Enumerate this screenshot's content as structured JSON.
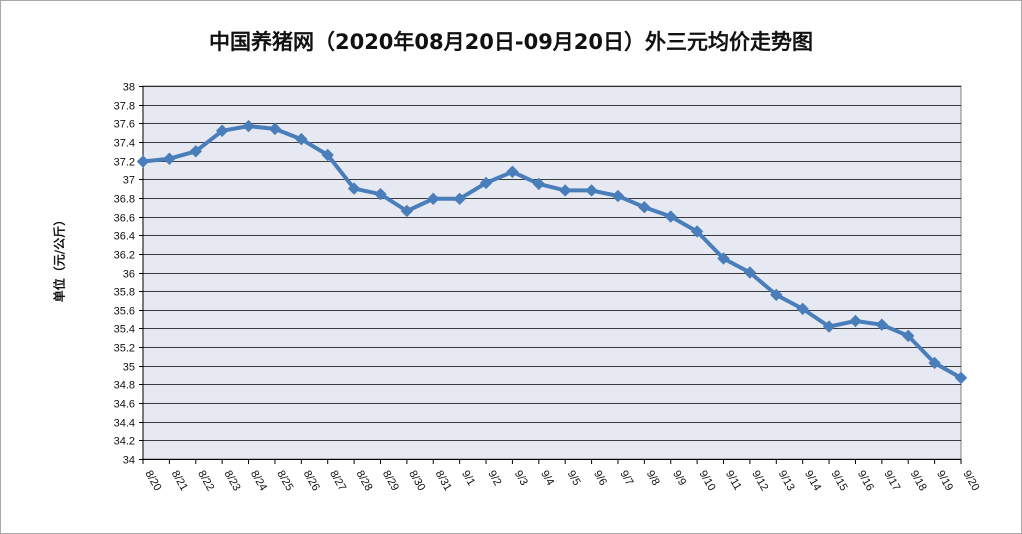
{
  "chart_data": {
    "type": "line",
    "title": "中国养猪网（2020年08月20日-09月20日）外三元均价走势图",
    "xlabel": "",
    "ylabel": "单位（元/公斤）",
    "ylim": [
      34,
      38
    ],
    "ytick_step": 0.2,
    "ytick_labels": [
      "34",
      "34.2",
      "34.4",
      "34.6",
      "34.8",
      "35",
      "35.2",
      "35.4",
      "35.6",
      "35.8",
      "36",
      "36.2",
      "36.4",
      "36.6",
      "36.8",
      "37",
      "37.2",
      "37.4",
      "37.6",
      "37.8",
      "38"
    ],
    "grid": true,
    "legend": "none",
    "categories": [
      "8/20",
      "8/21",
      "8/22",
      "8/23",
      "8/24",
      "8/25",
      "8/26",
      "8/27",
      "8/28",
      "8/29",
      "8/30",
      "8/31",
      "9/1",
      "9/2",
      "9/3",
      "9/4",
      "9/5",
      "9/6",
      "9/7",
      "9/8",
      "9/9",
      "9/10",
      "9/11",
      "9/12",
      "9/13",
      "9/14",
      "9/15",
      "9/16",
      "9/17",
      "9/18",
      "9/19",
      "9/20"
    ],
    "series": [
      {
        "values": [
          37.19,
          37.22,
          37.3,
          37.52,
          37.57,
          37.54,
          37.43,
          37.26,
          36.9,
          36.84,
          36.66,
          36.79,
          36.79,
          36.96,
          37.08,
          36.95,
          36.88,
          36.88,
          36.82,
          36.7,
          36.6,
          36.44,
          36.15,
          36.0,
          35.76,
          35.61,
          35.42,
          35.48,
          35.44,
          35.32,
          35.03,
          34.87
        ],
        "color": "#4a7ebb"
      }
    ],
    "colors": {
      "plot_bg": "#e6e9f2",
      "grid": "#000000",
      "line": "#4a7ebb"
    }
  }
}
